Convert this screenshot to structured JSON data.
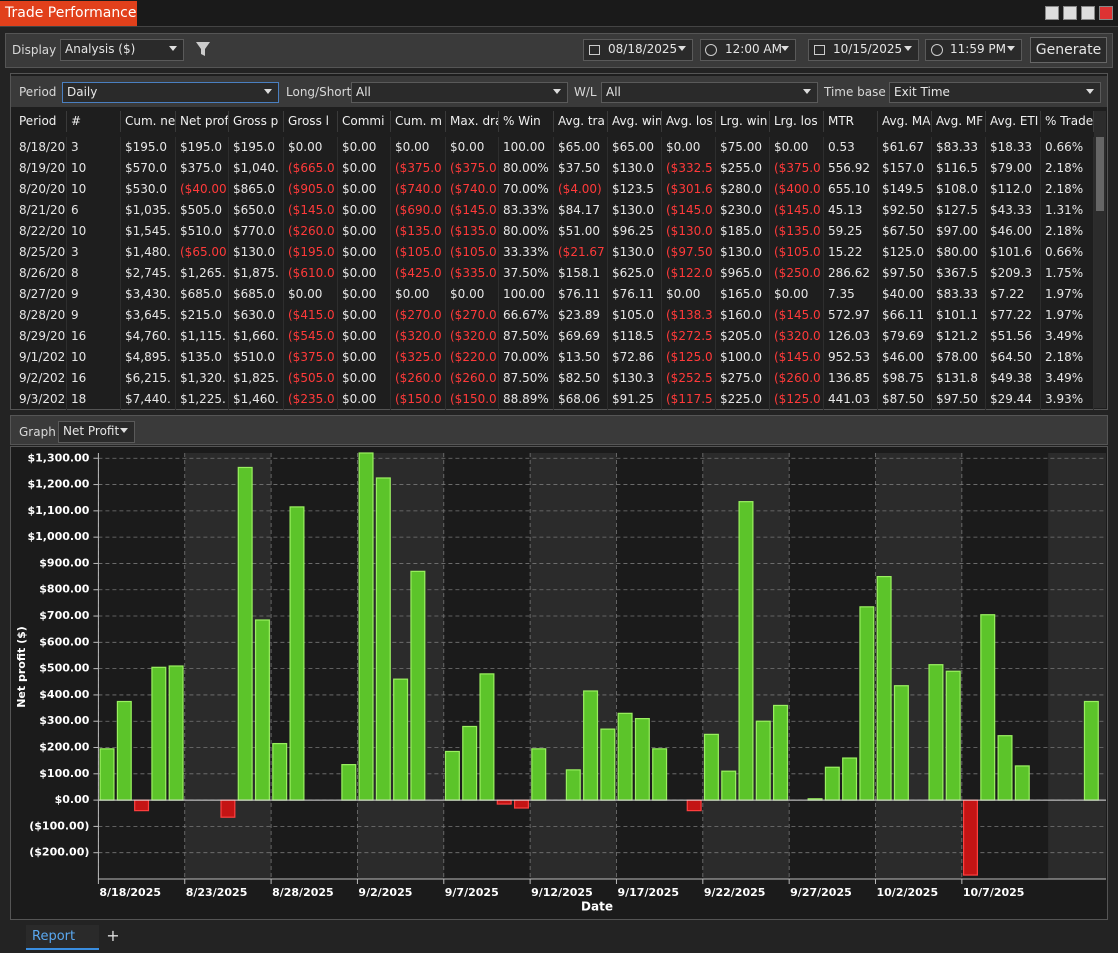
{
  "window": {
    "title": "Trade Performance"
  },
  "toolbar": {
    "display_label": "Display",
    "display_value": "Analysis ($)",
    "start_date": "08/18/2025",
    "start_time": "12:00 AM",
    "end_date": "10/15/2025",
    "end_time": "11:59 PM",
    "generate": "Generate"
  },
  "filters": {
    "period_label": "Period",
    "period_value": "Daily",
    "long_short_label": "Long/Short",
    "long_short_value": "All",
    "wl_label": "W/L",
    "wl_value": "All",
    "time_base_label": "Time base",
    "time_base_value": "Exit Time"
  },
  "table": {
    "columns": [
      "Period",
      "#",
      "Cum. ne",
      "Net prof",
      "Gross p",
      "Gross l",
      "Commi",
      "Cum. m",
      "Max. dra",
      "% Win",
      "Avg. tra",
      "Avg. win",
      "Avg. los",
      "Lrg. win",
      "Lrg. los",
      "MTR",
      "Avg. MA",
      "Avg. MF",
      "Avg. ETI",
      "% Trade"
    ],
    "rows": [
      [
        "8/18/20",
        "3",
        "$195.0",
        "$195.0",
        "$195.0",
        "$0.00",
        "$0.00",
        "$0.00",
        "$0.00",
        "100.00",
        "$65.00",
        "$65.00",
        "$0.00",
        "$75.00",
        "$0.00",
        "0.53",
        "$61.67",
        "$83.33",
        "$18.33",
        "0.66%"
      ],
      [
        "8/19/20",
        "10",
        "$570.0",
        "$375.0",
        "$1,040.",
        "($665.0",
        "$0.00",
        "($375.0",
        "($375.0",
        "80.00%",
        "$37.50",
        "$130.0",
        "($332.5",
        "$255.0",
        "($375.0",
        "556.92",
        "$157.0",
        "$116.5",
        "$79.00",
        "2.18%"
      ],
      [
        "8/20/20",
        "10",
        "$530.0",
        "($40.00",
        "$865.0",
        "($905.0",
        "$0.00",
        "($740.0",
        "($740.0",
        "70.00%",
        "($4.00)",
        "$123.5",
        "($301.6",
        "$280.0",
        "($400.0",
        "655.10",
        "$149.5",
        "$108.0",
        "$112.0",
        "2.18%"
      ],
      [
        "8/21/20",
        "6",
        "$1,035.",
        "$505.0",
        "$650.0",
        "($145.0",
        "$0.00",
        "($690.0",
        "($145.0",
        "83.33%",
        "$84.17",
        "$130.0",
        "($145.0",
        "$230.0",
        "($145.0",
        "45.13",
        "$92.50",
        "$127.5",
        "$43.33",
        "1.31%"
      ],
      [
        "8/22/20",
        "10",
        "$1,545.",
        "$510.0",
        "$770.0",
        "($260.0",
        "$0.00",
        "($135.0",
        "($135.0",
        "80.00%",
        "$51.00",
        "$96.25",
        "($130.0",
        "$185.0",
        "($135.0",
        "59.25",
        "$67.50",
        "$97.00",
        "$46.00",
        "2.18%"
      ],
      [
        "8/25/20",
        "3",
        "$1,480.",
        "($65.00",
        "$130.0",
        "($195.0",
        "$0.00",
        "($105.0",
        "($105.0",
        "33.33%",
        "($21.67",
        "$130.0",
        "($97.50",
        "$130.0",
        "($105.0",
        "15.22",
        "$125.0",
        "$80.00",
        "$101.6",
        "0.66%"
      ],
      [
        "8/26/20",
        "8",
        "$2,745.",
        "$1,265.",
        "$1,875.",
        "($610.0",
        "$0.00",
        "($425.0",
        "($335.0",
        "37.50%",
        "$158.1",
        "$625.0",
        "($122.0",
        "$965.0",
        "($250.0",
        "286.62",
        "$97.50",
        "$367.5",
        "$209.3",
        "1.75%"
      ],
      [
        "8/27/20",
        "9",
        "$3,430.",
        "$685.0",
        "$685.0",
        "$0.00",
        "$0.00",
        "$0.00",
        "$0.00",
        "100.00",
        "$76.11",
        "$76.11",
        "$0.00",
        "$165.0",
        "$0.00",
        "7.35",
        "$40.00",
        "$83.33",
        "$7.22",
        "1.97%"
      ],
      [
        "8/28/20",
        "9",
        "$3,645.",
        "$215.0",
        "$630.0",
        "($415.0",
        "$0.00",
        "($270.0",
        "($270.0",
        "66.67%",
        "$23.89",
        "$105.0",
        "($138.3",
        "$160.0",
        "($145.0",
        "572.97",
        "$66.11",
        "$101.1",
        "$77.22",
        "1.97%"
      ],
      [
        "8/29/20",
        "16",
        "$4,760.",
        "$1,115.",
        "$1,660.",
        "($545.0",
        "$0.00",
        "($320.0",
        "($320.0",
        "87.50%",
        "$69.69",
        "$118.5",
        "($272.5",
        "$205.0",
        "($320.0",
        "126.03",
        "$79.69",
        "$121.2",
        "$51.56",
        "3.49%"
      ],
      [
        "9/1/202",
        "10",
        "$4,895.",
        "$135.0",
        "$510.0",
        "($375.0",
        "$0.00",
        "($325.0",
        "($220.0",
        "70.00%",
        "$13.50",
        "$72.86",
        "($125.0",
        "$100.0",
        "($145.0",
        "952.53",
        "$46.00",
        "$78.00",
        "$64.50",
        "2.18%"
      ],
      [
        "9/2/202",
        "16",
        "$6,215.",
        "$1,320.",
        "$1,825.",
        "($505.0",
        "$0.00",
        "($260.0",
        "($260.0",
        "87.50%",
        "$82.50",
        "$130.3",
        "($252.5",
        "$275.0",
        "($260.0",
        "136.85",
        "$98.75",
        "$131.8",
        "$49.38",
        "3.49%"
      ],
      [
        "9/3/202",
        "18",
        "$7,440.",
        "$1,225.",
        "$1,460.",
        "($235.0",
        "$0.00",
        "($150.0",
        "($150.0",
        "88.89%",
        "$68.06",
        "$91.25",
        "($117.5",
        "$225.0",
        "($125.0",
        "441.03",
        "$87.50",
        "$97.50",
        "$29.44",
        "3.93%"
      ]
    ]
  },
  "graph": {
    "label": "Graph",
    "value": "Net Profit"
  },
  "chart_data": {
    "type": "bar",
    "x_label": "Date",
    "y_label": "Net profit ($)",
    "x": [
      "8/18/2025",
      "8/19/2025",
      "8/20/2025",
      "8/21/2025",
      "8/22/2025",
      "8/25/2025",
      "8/26/2025",
      "8/27/2025",
      "8/28/2025",
      "8/29/2025",
      "9/1/2025",
      "9/2/2025",
      "9/3/2025",
      "9/4/2025",
      "9/5/2025",
      "9/7/2025",
      "9/8/2025",
      "9/9/2025",
      "9/10/2025",
      "9/11/2025",
      "9/12/2025",
      "9/14/2025",
      "9/15/2025",
      "9/16/2025",
      "9/17/2025",
      "9/18/2025",
      "9/19/2025",
      "9/21/2025",
      "9/22/2025",
      "9/23/2025",
      "9/24/2025",
      "9/25/2025",
      "9/26/2025",
      "9/28/2025",
      "9/29/2025",
      "9/30/2025",
      "10/1/2025",
      "10/2/2025",
      "10/3/2025",
      "10/5/2025",
      "10/6/2025",
      "10/7/2025",
      "10/8/2025",
      "10/9/2025",
      "10/10/2025",
      "10/14/2025"
    ],
    "values": [
      195,
      375,
      -40,
      505,
      510,
      -65,
      1265,
      685,
      215,
      1115,
      135,
      1320,
      1225,
      460,
      870,
      185,
      280,
      480,
      -15,
      -30,
      195,
      115,
      415,
      270,
      330,
      310,
      195,
      -40,
      250,
      110,
      1135,
      300,
      360,
      5,
      125,
      160,
      735,
      850,
      435,
      515,
      490,
      -285,
      705,
      245,
      130,
      375
    ],
    "positive_color": "#5cc42a",
    "negative_color": "#c41414",
    "xlim": [
      "8/18/2025",
      "10/15/2025"
    ],
    "xticks": [
      "8/18/2025",
      "8/23/2025",
      "8/28/2025",
      "9/2/2025",
      "9/7/2025",
      "9/12/2025",
      "9/17/2025",
      "9/22/2025",
      "9/27/2025",
      "10/2/2025",
      "10/7/2025"
    ],
    "ylim": [
      -300,
      1320
    ],
    "yticks": [
      {
        "value": -200,
        "label": "($200.00)"
      },
      {
        "value": -100,
        "label": "($100.00)"
      },
      {
        "value": 0,
        "label": "$0.00"
      },
      {
        "value": 100,
        "label": "$100.00"
      },
      {
        "value": 200,
        "label": "$200.00"
      },
      {
        "value": 300,
        "label": "$300.00"
      },
      {
        "value": 400,
        "label": "$400.00"
      },
      {
        "value": 500,
        "label": "$500.00"
      },
      {
        "value": 600,
        "label": "$600.00"
      },
      {
        "value": 700,
        "label": "$700.00"
      },
      {
        "value": 800,
        "label": "$800.00"
      },
      {
        "value": 900,
        "label": "$900.00"
      },
      {
        "value": 1000,
        "label": "$1,000.00"
      },
      {
        "value": 1100,
        "label": "$1,100.00"
      },
      {
        "value": 1200,
        "label": "$1,200.00"
      },
      {
        "value": 1300,
        "label": "$1,300.00"
      }
    ],
    "grid": true
  },
  "tabs": {
    "report": "Report",
    "add": "+"
  }
}
